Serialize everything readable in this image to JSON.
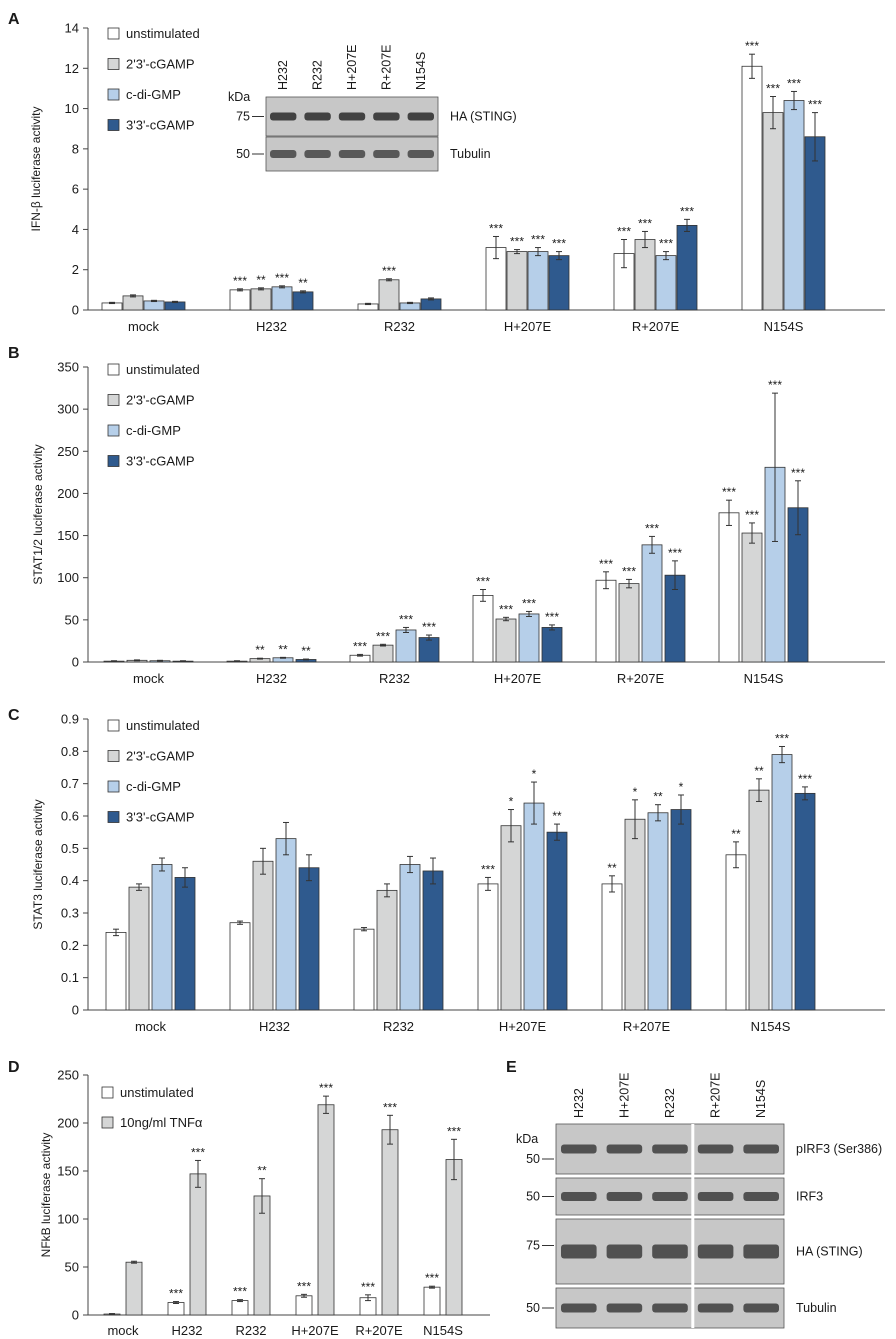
{
  "colors": {
    "unstimulated": "#ffffff",
    "cgamp23": "#d5d6d6",
    "cdigmp": "#b6cfe9",
    "cgamp33": "#2f5a8e",
    "tnf": "#d5d6d6",
    "axis": "#444444",
    "blot_bg": "#c7c7c7",
    "band": "#2a2a2a"
  },
  "chart_data": [
    {
      "panel": "A",
      "type": "bar",
      "ylabel": "IFN-β luciferase activity",
      "ylim": [
        0,
        14
      ],
      "yticks": [
        "0",
        "2",
        "4",
        "6",
        "8",
        "10",
        "12",
        "14"
      ],
      "categories": [
        "mock",
        "H232",
        "R232",
        "H+207E",
        "R+207E",
        "N154S"
      ],
      "series": [
        {
          "name": "unstimulated",
          "values": [
            0.35,
            1.0,
            0.3,
            3.1,
            2.8,
            12.1
          ],
          "err": [
            0.03,
            0.05,
            0.03,
            0.55,
            0.7,
            0.6
          ],
          "sig": [
            "",
            "***",
            "",
            "***",
            "***",
            "***"
          ]
        },
        {
          "name": "2'3'-cGAMP",
          "values": [
            0.7,
            1.05,
            1.5,
            2.9,
            3.5,
            9.8
          ],
          "err": [
            0.05,
            0.05,
            0.05,
            0.1,
            0.4,
            0.8
          ],
          "sig": [
            "",
            "**",
            "***",
            "***",
            "***",
            "***"
          ]
        },
        {
          "name": "c-di-GMP",
          "values": [
            0.45,
            1.15,
            0.35,
            2.9,
            2.7,
            10.4
          ],
          "err": [
            0.03,
            0.05,
            0.03,
            0.2,
            0.2,
            0.45
          ],
          "sig": [
            "",
            "***",
            "",
            "***",
            "***",
            "***"
          ]
        },
        {
          "name": "3'3'-cGAMP",
          "values": [
            0.4,
            0.9,
            0.55,
            2.7,
            4.2,
            8.6
          ],
          "err": [
            0.03,
            0.05,
            0.05,
            0.2,
            0.3,
            1.2
          ],
          "sig": [
            "",
            "**",
            "",
            "***",
            "***",
            "***"
          ]
        }
      ]
    },
    {
      "panel": "B",
      "type": "bar",
      "ylabel": "STAT1/2 luciferase activity",
      "ylim": [
        0,
        350
      ],
      "yticks": [
        "0",
        "50",
        "100",
        "150",
        "200",
        "250",
        "300",
        "350"
      ],
      "categories": [
        "mock",
        "H232",
        "R232",
        "H+207E",
        "R+207E",
        "N154S"
      ],
      "series": [
        {
          "name": "unstimulated",
          "values": [
            1,
            1,
            8,
            79,
            97,
            177
          ],
          "err": [
            0.5,
            0.5,
            1,
            7,
            10,
            15
          ],
          "sig": [
            "",
            "",
            "***",
            "***",
            "***",
            "***"
          ]
        },
        {
          "name": "2'3'-cGAMP",
          "values": [
            2,
            4,
            20,
            51,
            93,
            153
          ],
          "err": [
            0.5,
            0.5,
            1,
            2,
            5,
            12
          ],
          "sig": [
            "",
            "**",
            "***",
            "***",
            "***",
            "***"
          ]
        },
        {
          "name": "c-di-GMP",
          "values": [
            1.5,
            5,
            38,
            57,
            139,
            231
          ],
          "err": [
            0.5,
            0.5,
            3,
            3,
            10,
            88
          ],
          "sig": [
            "",
            "**",
            "***",
            "***",
            "***",
            "***"
          ]
        },
        {
          "name": "3'3'-cGAMP",
          "values": [
            1,
            3,
            29,
            41,
            103,
            183
          ],
          "err": [
            0.5,
            0.5,
            3,
            3,
            17,
            32
          ],
          "sig": [
            "",
            "**",
            "***",
            "***",
            "***",
            "***"
          ]
        }
      ]
    },
    {
      "panel": "C",
      "type": "bar",
      "ylabel": "STAT3 luciferase activity",
      "ylim": [
        0,
        0.9
      ],
      "yticks": [
        "0",
        "0.1",
        "0.2",
        "0.3",
        "0.4",
        "0.5",
        "0.6",
        "0.7",
        "0.8",
        "0.9"
      ],
      "categories": [
        "mock",
        "H232",
        "R232",
        "H+207E",
        "R+207E",
        "N154S"
      ],
      "series": [
        {
          "name": "unstimulated",
          "values": [
            0.24,
            0.27,
            0.25,
            0.39,
            0.39,
            0.48
          ],
          "err": [
            0.01,
            0.005,
            0.005,
            0.02,
            0.025,
            0.04
          ],
          "sig": [
            "",
            "",
            "",
            "***",
            "**",
            "**"
          ]
        },
        {
          "name": "2'3'-cGAMP",
          "values": [
            0.38,
            0.46,
            0.37,
            0.57,
            0.59,
            0.68
          ],
          "err": [
            0.01,
            0.04,
            0.02,
            0.05,
            0.06,
            0.035
          ],
          "sig": [
            "",
            "",
            "",
            "*",
            "*",
            "**"
          ]
        },
        {
          "name": "c-di-GMP",
          "values": [
            0.45,
            0.53,
            0.45,
            0.64,
            0.61,
            0.79
          ],
          "err": [
            0.02,
            0.05,
            0.025,
            0.065,
            0.025,
            0.025
          ],
          "sig": [
            "",
            "",
            "",
            "*",
            "**",
            "***"
          ]
        },
        {
          "name": "3'3'-cGAMP",
          "values": [
            0.41,
            0.44,
            0.43,
            0.55,
            0.62,
            0.67
          ],
          "err": [
            0.03,
            0.04,
            0.04,
            0.025,
            0.045,
            0.02
          ],
          "sig": [
            "",
            "",
            "",
            "**",
            "*",
            "***"
          ]
        }
      ]
    },
    {
      "panel": "D",
      "type": "bar",
      "ylabel": "NFkB luciferase activity",
      "ylim": [
        0,
        250
      ],
      "yticks": [
        "0",
        "50",
        "100",
        "150",
        "200",
        "250"
      ],
      "categories": [
        "mock",
        "H232",
        "R232",
        "H+207E",
        "R+207E",
        "N154S"
      ],
      "series": [
        {
          "name": "unstimulated",
          "values": [
            1,
            13,
            15,
            20,
            18,
            29
          ],
          "err": [
            0.5,
            1,
            1,
            1.5,
            3,
            1
          ],
          "sig": [
            "",
            "***",
            "***",
            "***",
            "***",
            "***"
          ]
        },
        {
          "name": "10ng/ml TNFα",
          "values": [
            55,
            147,
            124,
            219,
            193,
            162
          ],
          "err": [
            1,
            14,
            18,
            9,
            15,
            21
          ],
          "sig": [
            "",
            "***",
            "**",
            "***",
            "***",
            "***"
          ]
        }
      ]
    }
  ],
  "legend_A": [
    "unstimulated",
    "2'3'-cGAMP",
    "c-di-GMP",
    "3'3'-cGAMP"
  ],
  "legend_D": [
    "unstimulated",
    "10ng/ml TNFα"
  ],
  "blot_A": {
    "lanes": [
      "H232",
      "R232",
      "H+207E",
      "R+207E",
      "N154S"
    ],
    "kda_label": "kDa",
    "rows": [
      {
        "mw": "75",
        "label": "HA (STING)"
      },
      {
        "mw": "50",
        "label": "Tubulin"
      }
    ]
  },
  "blot_E": {
    "lanes": [
      "H232",
      "H+207E",
      "R232",
      "R+207E",
      "N154S"
    ],
    "kda_label": "kDa",
    "rows": [
      {
        "mw": "50",
        "label": "pIRF3 (Ser386)"
      },
      {
        "mw": "50",
        "label": "IRF3"
      },
      {
        "mw": "75",
        "label": "HA (STING)"
      },
      {
        "mw": "50",
        "label": "Tubulin"
      }
    ]
  },
  "panel_letters": [
    "A",
    "B",
    "C",
    "D",
    "E"
  ]
}
